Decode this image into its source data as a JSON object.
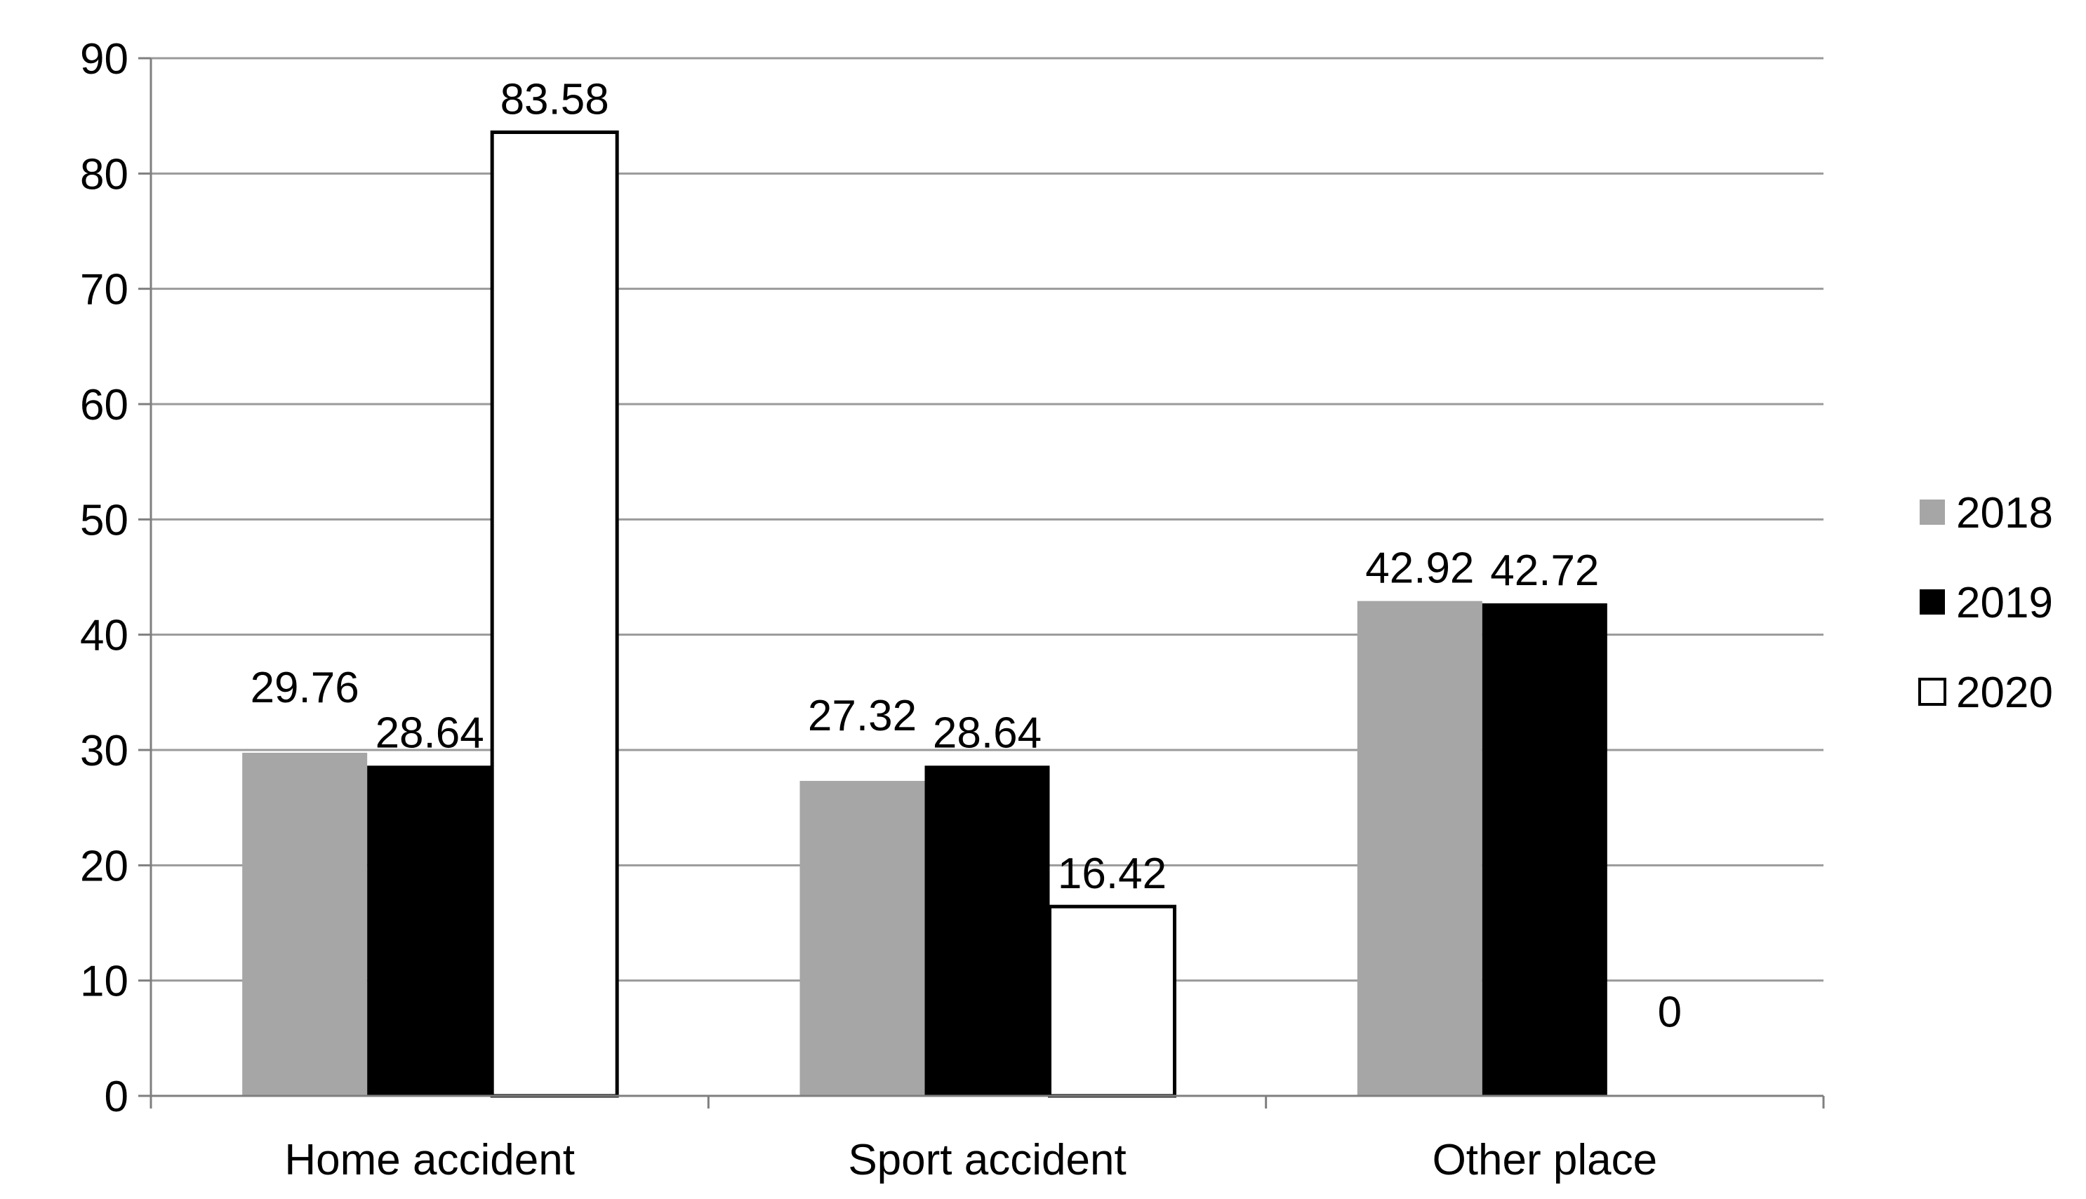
{
  "chart_data": {
    "type": "bar",
    "categories": [
      "Home accident",
      "Sport accident",
      "Other place"
    ],
    "series": [
      {
        "name": "2018",
        "values": [
          29.76,
          27.32,
          42.92
        ],
        "color": "#a6a6a6",
        "stroke": "#a6a6a6"
      },
      {
        "name": "2019",
        "values": [
          28.64,
          28.64,
          42.72
        ],
        "color": "#000000",
        "stroke": "#000000"
      },
      {
        "name": "2020",
        "values": [
          83.58,
          16.42,
          0
        ],
        "color": "#ffffff",
        "stroke": "#000000"
      }
    ],
    "data_labels": [
      [
        "29.76",
        "27.32",
        "42.92"
      ],
      [
        "28.64",
        "28.64",
        "42.72"
      ],
      [
        "83.58",
        "16.42",
        "0"
      ]
    ],
    "yticks": [
      "0",
      "10",
      "20",
      "30",
      "40",
      "50",
      "60",
      "70",
      "80",
      "90"
    ],
    "ylim": [
      0,
      90
    ],
    "title": "",
    "xlabel": "",
    "ylabel": "",
    "grid": true,
    "legend_position": "right",
    "colors": {
      "gridline": "#9a9a9a",
      "axis": "#7f7f7f"
    }
  }
}
